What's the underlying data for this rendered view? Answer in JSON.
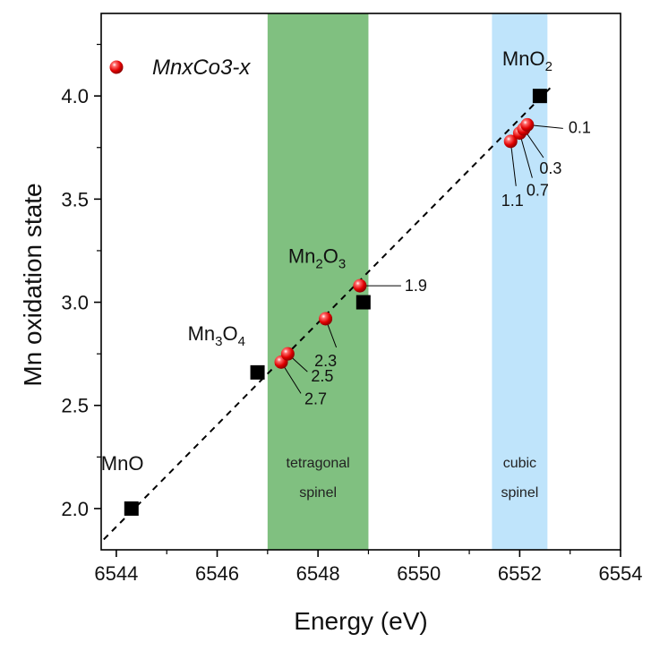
{
  "chart_data": {
    "type": "scatter",
    "xlabel": "Energy (eV)",
    "ylabel": "Mn oxidation state",
    "xlim": [
      6543.7,
      6554
    ],
    "ylim": [
      1.8,
      4.4
    ],
    "xticks": [
      6544,
      6546,
      6548,
      6550,
      6552,
      6554
    ],
    "xtick_labels": [
      "6544",
      "6546",
      "6548",
      "6550",
      "6552",
      "6554"
    ],
    "yticks": [
      2.0,
      2.5,
      3.0,
      3.5,
      4.0
    ],
    "ytick_labels": [
      "2.0",
      "2.5",
      "3.0",
      "3.5",
      "4.0"
    ],
    "grid": false,
    "legend": {
      "position": "top-left",
      "entries": [
        {
          "label": "MnxCo3-x",
          "marker": "red-sphere"
        }
      ]
    },
    "regions": [
      {
        "x_start": 6547.0,
        "x_end": 6549.0,
        "line1": "tetragonal",
        "line2": "spinel",
        "color": "#80c080"
      },
      {
        "x_start": 6551.45,
        "x_end": 6552.55,
        "line1": "cubic",
        "line2": "spinel",
        "color": "#bfe4fb"
      }
    ],
    "reference_series": {
      "marker": "black-square",
      "points": [
        {
          "x": 6544.3,
          "y": 2.0,
          "name": "MnO",
          "sub": "",
          "suffix": ""
        },
        {
          "x": 6546.8,
          "y": 2.66,
          "name": "Mn",
          "sub": "3",
          "suffix": "O",
          "sub2": "4"
        },
        {
          "x": 6548.9,
          "y": 3.0,
          "name": "Mn",
          "sub": "2",
          "suffix": "O",
          "sub2": "3"
        },
        {
          "x": 6552.4,
          "y": 4.0,
          "name": "MnO",
          "sub": "2",
          "suffix": ""
        }
      ]
    },
    "fit_line": {
      "style": "dashed",
      "x": [
        6543.75,
        6552.65
      ],
      "y": [
        1.85,
        4.05
      ]
    },
    "sample_series": {
      "name": "MnxCo3-x",
      "points": [
        {
          "x": 6547.27,
          "y": 2.71,
          "label": "2.7"
        },
        {
          "x": 6547.4,
          "y": 2.75,
          "label": "2.5"
        },
        {
          "x": 6548.15,
          "y": 2.92,
          "label": "2.3"
        },
        {
          "x": 6548.83,
          "y": 3.08,
          "label": "1.9"
        },
        {
          "x": 6551.82,
          "y": 3.78,
          "label": "1.1"
        },
        {
          "x": 6552.0,
          "y": 3.82,
          "label": "0.7"
        },
        {
          "x": 6552.08,
          "y": 3.84,
          "label": "0.3"
        },
        {
          "x": 6552.15,
          "y": 3.86,
          "label": "0.1"
        }
      ]
    }
  }
}
